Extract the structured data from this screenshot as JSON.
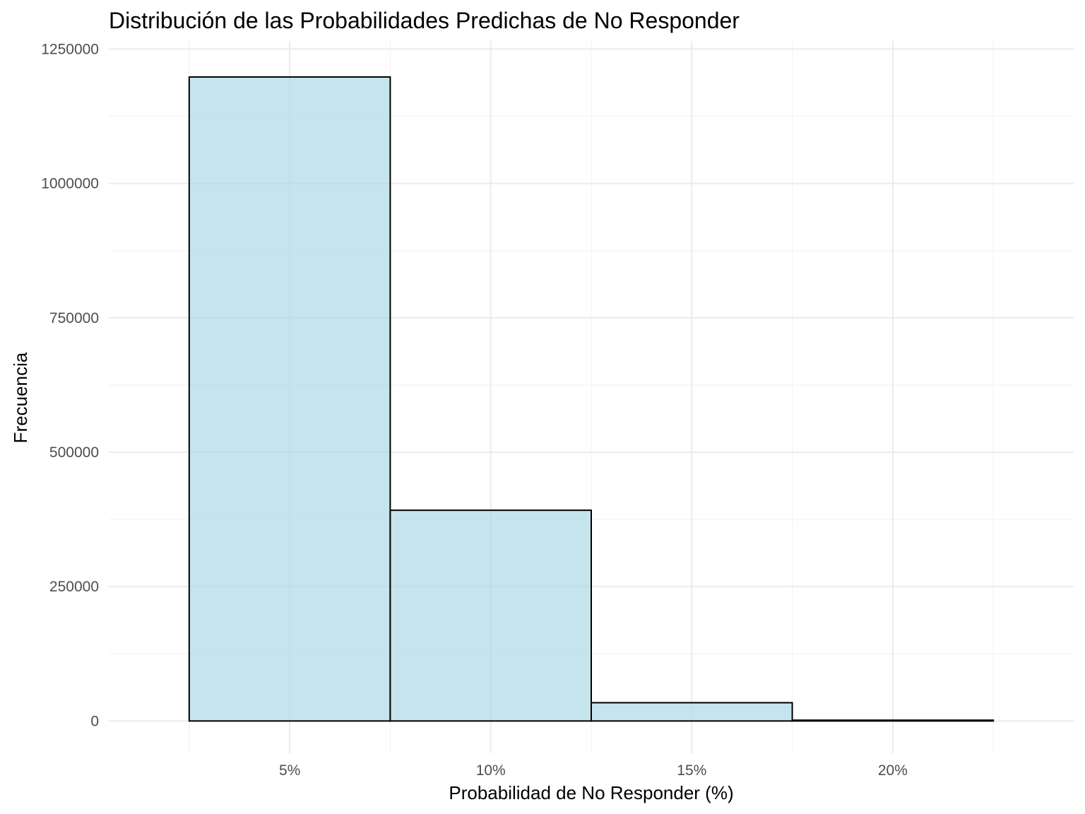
{
  "chart_data": {
    "type": "bar",
    "subtype": "histogram",
    "title": "Distribución de las Probabilidades Predichas de No Responder",
    "xlabel": "Probabilidad de No Responder (%)",
    "ylabel": "Frecuencia",
    "bins": [
      {
        "start": 2.5,
        "end": 7.5,
        "count": 1198000
      },
      {
        "start": 7.5,
        "end": 12.5,
        "count": 392000
      },
      {
        "start": 12.5,
        "end": 17.5,
        "count": 34000
      },
      {
        "start": 17.5,
        "end": 22.5,
        "count": 1500
      }
    ],
    "xlim": [
      0.5,
      24.5
    ],
    "ylim": [
      -60000,
      1265000
    ],
    "x_ticks": [
      {
        "value": 5,
        "label": "5%"
      },
      {
        "value": 10,
        "label": "10%"
      },
      {
        "value": 15,
        "label": "15%"
      },
      {
        "value": 20,
        "label": "20%"
      }
    ],
    "y_ticks": [
      {
        "value": 0,
        "label": "0"
      },
      {
        "value": 250000,
        "label": "250000"
      },
      {
        "value": 500000,
        "label": "500000"
      },
      {
        "value": 750000,
        "label": "750000"
      },
      {
        "value": 1000000,
        "label": "1000000"
      },
      {
        "value": 1250000,
        "label": "1250000"
      }
    ],
    "x_minor_grid": [
      2.5,
      7.5,
      12.5,
      17.5,
      22.5
    ],
    "y_minor_grid": [
      125000,
      375000,
      625000,
      875000,
      1125000
    ],
    "grid": true,
    "legend": "none",
    "colors": {
      "bar_fill": "#add8e6",
      "bar_fill_opacity": 0.7,
      "bar_stroke": "#000000",
      "grid_major": "#ebebeb",
      "grid_minor": "#f3f3f3",
      "tick_text": "#4d4d4d"
    }
  }
}
